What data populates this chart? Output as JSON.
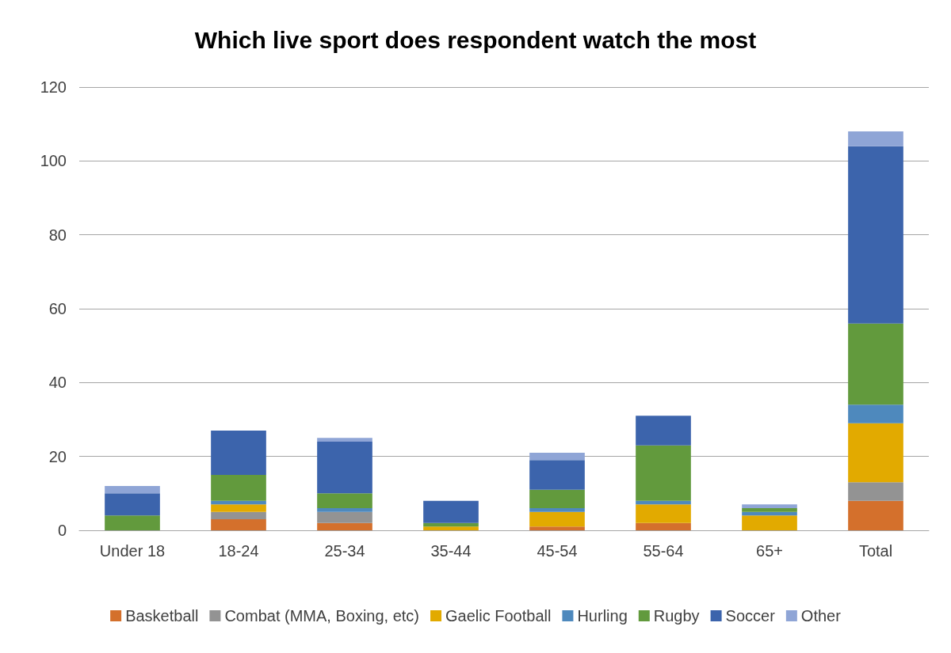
{
  "chart_data": {
    "type": "bar",
    "title": "Which live sport does respondent watch the most",
    "categories": [
      "Under 18",
      "18-24",
      "25-34",
      "35-44",
      "45-54",
      "55-64",
      "65+",
      "Total"
    ],
    "stacked": true,
    "series": [
      {
        "name": "Basketball",
        "color": "#d4702c",
        "values": [
          0,
          3,
          2,
          0,
          1,
          2,
          0,
          8
        ]
      },
      {
        "name": "Combat (MMA, Boxing, etc)",
        "color": "#939393",
        "values": [
          0,
          2,
          3,
          0,
          0,
          0,
          0,
          5
        ]
      },
      {
        "name": "Gaelic Football",
        "color": "#e2aa00",
        "values": [
          0,
          2,
          0,
          1,
          4,
          5,
          4,
          16
        ]
      },
      {
        "name": "Hurling",
        "color": "#4e89bd",
        "values": [
          0,
          1,
          1,
          0,
          1,
          1,
          1,
          5
        ]
      },
      {
        "name": "Rugby",
        "color": "#629a3d",
        "values": [
          4,
          7,
          4,
          1,
          5,
          15,
          1,
          22
        ]
      },
      {
        "name": "Soccer",
        "color": "#3c64ac",
        "values": [
          6,
          12,
          14,
          6,
          8,
          8,
          0,
          48
        ]
      },
      {
        "name": "Other",
        "color": "#8fa5d6",
        "values": [
          2,
          0,
          1,
          0,
          2,
          0,
          1,
          4
        ]
      }
    ],
    "ylim": [
      0,
      120
    ],
    "yticks": [
      0,
      20,
      40,
      60,
      80,
      100,
      120
    ],
    "grid": "y",
    "legend": "bottom"
  }
}
